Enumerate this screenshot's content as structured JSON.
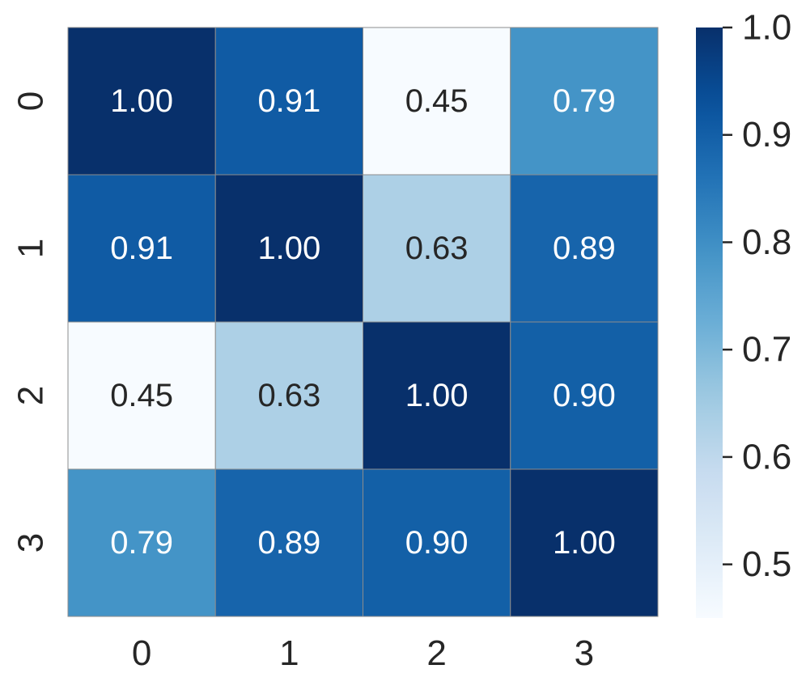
{
  "chart_data": {
    "type": "heatmap",
    "title": "",
    "xlabel": "",
    "ylabel": "",
    "x_categories": [
      "0",
      "1",
      "2",
      "3"
    ],
    "y_categories": [
      "0",
      "1",
      "2",
      "3"
    ],
    "values": [
      [
        1.0,
        0.91,
        0.45,
        0.79
      ],
      [
        0.91,
        1.0,
        0.63,
        0.89
      ],
      [
        0.45,
        0.63,
        1.0,
        0.9
      ],
      [
        0.79,
        0.89,
        0.9,
        1.0
      ]
    ],
    "cell_labels": [
      [
        "1.00",
        "0.91",
        "0.45",
        "0.79"
      ],
      [
        "0.91",
        "1.00",
        "0.63",
        "0.89"
      ],
      [
        "0.45",
        "0.63",
        "1.00",
        "0.90"
      ],
      [
        "0.79",
        "0.89",
        "0.90",
        "1.00"
      ]
    ],
    "colormap": "Blues",
    "vmin": 0.45,
    "vmax": 1.0,
    "colorbar": {
      "ticks": [
        0.5,
        0.6,
        0.7,
        0.8,
        0.9,
        1.0
      ],
      "tick_labels": [
        "0.5",
        "0.6",
        "0.7",
        "0.8",
        "0.9",
        "1.0"
      ]
    },
    "text_color_dark": "#262626",
    "text_color_light": "#ffffff",
    "cell_border_color": "#8c8c8c",
    "tick_color": "#262626"
  }
}
